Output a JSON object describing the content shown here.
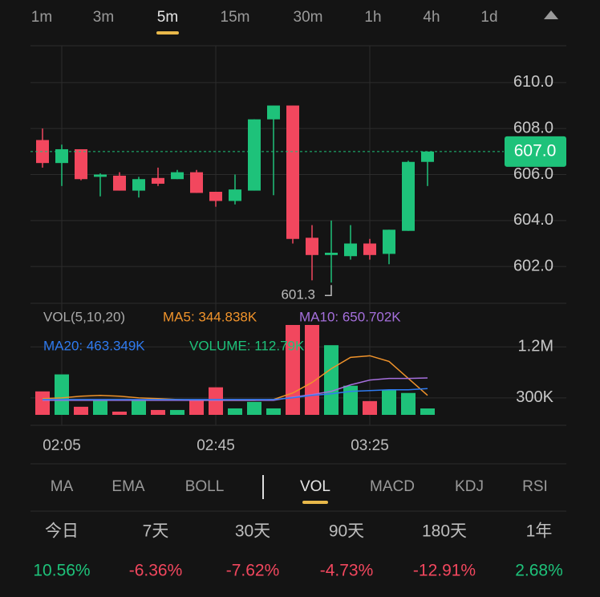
{
  "tabs": {
    "timeframes": [
      "1m",
      "3m",
      "5m",
      "15m",
      "30m",
      "1h",
      "4h",
      "1d"
    ],
    "active": "5m"
  },
  "chart_data": {
    "type": "candlestick",
    "grid": true,
    "up_color": "#1ec27a",
    "down_color": "#f2475e",
    "categories": [
      null,
      "02:05",
      null,
      null,
      null,
      null,
      null,
      null,
      null,
      "02:45",
      null,
      null,
      null,
      null,
      null,
      null,
      null,
      "03:25",
      null,
      null,
      null
    ],
    "open": [
      607.5,
      606.5,
      607.1,
      605.9,
      605.95,
      605.3,
      605.85,
      605.8,
      606.1,
      605.25,
      604.85,
      605.3,
      608.4,
      609.0,
      603.25,
      602.5,
      602.45,
      603.0,
      602.55,
      603.55,
      606.55
    ],
    "high": [
      608.0,
      607.3,
      607.1,
      606.05,
      606.1,
      605.9,
      606.3,
      606.2,
      606.2,
      605.25,
      606.0,
      608.4,
      609.0,
      609.0,
      603.8,
      604.0,
      603.8,
      603.2,
      603.6,
      606.6,
      607.0
    ],
    "low": [
      606.3,
      605.5,
      605.75,
      605.05,
      605.3,
      605.0,
      605.5,
      605.8,
      605.2,
      604.6,
      604.7,
      605.3,
      605.1,
      603.0,
      601.4,
      601.3,
      602.3,
      602.3,
      602.1,
      603.55,
      605.5
    ],
    "close": [
      606.5,
      607.1,
      605.8,
      606.0,
      605.3,
      605.8,
      605.6,
      606.1,
      605.2,
      604.85,
      605.35,
      608.4,
      609.0,
      603.2,
      602.5,
      602.6,
      603.0,
      602.5,
      603.6,
      606.55,
      607.0
    ],
    "ylim": [
      600.4,
      611.6
    ],
    "yticks": [
      {
        "value": 602,
        "label": "602.0"
      },
      {
        "value": 604,
        "label": "604.0"
      },
      {
        "value": 606,
        "label": "606.0"
      },
      {
        "value": 608,
        "label": "608.0"
      },
      {
        "value": 610,
        "label": "610.0"
      }
    ],
    "last_price": {
      "value": 607,
      "label": "607.0"
    },
    "low_annotation": 601.3,
    "volume_title": "VOL(5,10,20)",
    "volume": [
      414000,
      714000,
      143000,
      257000,
      57000,
      257000,
      86000,
      86000,
      257000,
      486000,
      114000,
      229000,
      114000,
      1586000,
      1586000,
      1229000,
      514000,
      243000,
      443000,
      386000,
      112790
    ],
    "volume_label": "VOLUME: 112.79K",
    "y2lim": [
      0,
      1600000
    ],
    "y2ticks": [
      {
        "value": 300000,
        "label": "300K"
      },
      {
        "value": 1200000,
        "label": "1.2M"
      }
    ],
    "series": [
      {
        "label": "MA5: 344.838K",
        "color": "#f0932b",
        "values": [
          286000,
          300000,
          329000,
          343000,
          329000,
          300000,
          286000,
          271000,
          257000,
          257000,
          257000,
          257000,
          271000,
          386000,
          571000,
          814000,
          1014000,
          1043000,
          943000,
          643000,
          344838
        ]
      },
      {
        "label": "MA10: 650.702K",
        "color": "#a56fdc",
        "values": [
          257000,
          257000,
          257000,
          257000,
          257000,
          257000,
          257000,
          257000,
          257000,
          257000,
          257000,
          257000,
          257000,
          314000,
          357000,
          414000,
          529000,
          614000,
          643000,
          643000,
          650702
        ]
      },
      {
        "label": "MA20: 463.349K",
        "color": "#2f7bf0",
        "values": [
          271000,
          271000,
          271000,
          271000,
          271000,
          271000,
          271000,
          271000,
          271000,
          271000,
          271000,
          271000,
          271000,
          300000,
          343000,
          371000,
          414000,
          429000,
          443000,
          443000,
          463349
        ]
      }
    ]
  },
  "indicators": {
    "items": [
      "MA",
      "EMA",
      "BOLL",
      "VOL",
      "MACD",
      "KDJ",
      "RSI"
    ],
    "active": "VOL"
  },
  "returns": [
    {
      "label": "今日",
      "value": "10.56%"
    },
    {
      "label": "7天",
      "value": "-6.36%"
    },
    {
      "label": "30天",
      "value": "-7.62%"
    },
    {
      "label": "90天",
      "value": "-4.73%"
    },
    {
      "label": "180天",
      "value": "-12.91%"
    },
    {
      "label": "1年",
      "value": "2.68%"
    }
  ]
}
